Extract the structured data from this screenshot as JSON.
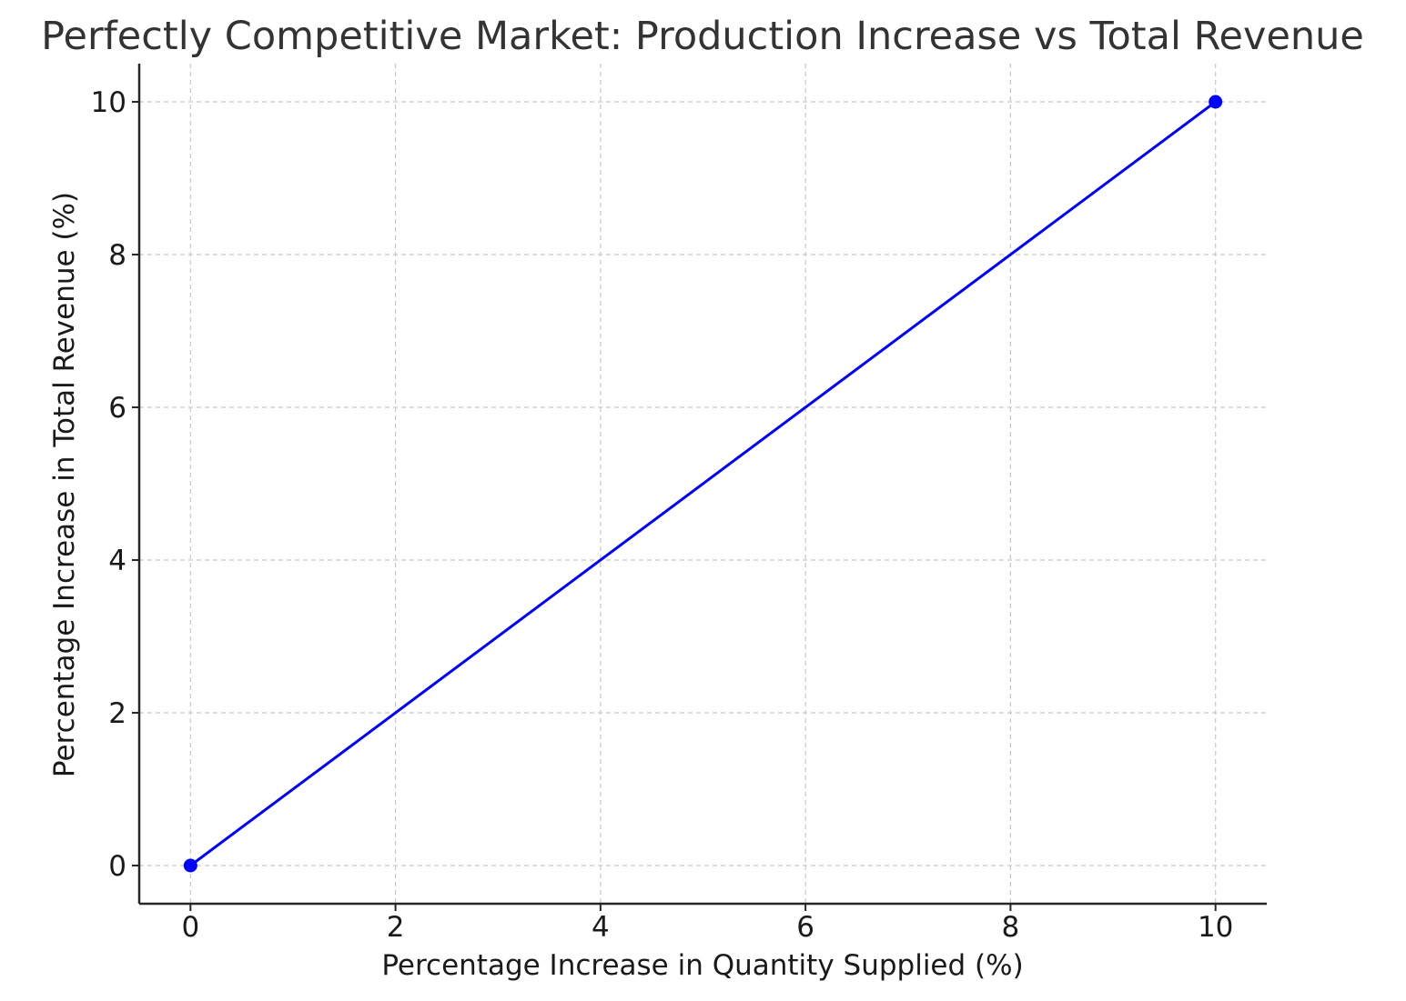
{
  "chart_data": {
    "type": "line",
    "title": "Perfectly Competitive Market: Production Increase vs Total Revenue",
    "xlabel": "Percentage Increase in Quantity Supplied (%)",
    "ylabel": "Percentage Increase in Total Revenue (%)",
    "xlim": [
      -0.5,
      10.5
    ],
    "ylim": [
      -0.5,
      10.5
    ],
    "x_ticks": [
      0,
      2,
      4,
      6,
      8,
      10
    ],
    "y_ticks": [
      0,
      2,
      4,
      6,
      8,
      10
    ],
    "x_tick_labels": [
      "0",
      "2",
      "4",
      "6",
      "8",
      "10"
    ],
    "y_tick_labels": [
      "0",
      "2",
      "4",
      "6",
      "8",
      "10"
    ],
    "grid": true,
    "series": [
      {
        "x": [
          0,
          10
        ],
        "y": [
          0,
          10
        ],
        "color": "#0000ff",
        "marker": "circle"
      }
    ]
  }
}
